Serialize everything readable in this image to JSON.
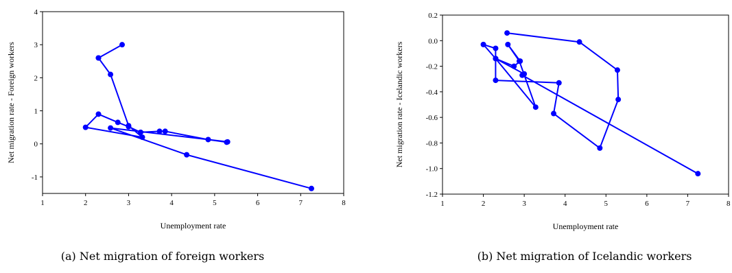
{
  "chart_data": [
    {
      "type": "line",
      "caption": "(a) Net migration of foreign workers",
      "xlabel": "Unemployment rate",
      "ylabel": "Net migration rate - Foreign workers",
      "xlim": [
        1,
        8
      ],
      "ylim": [
        -1.5,
        4
      ],
      "xticks": [
        "1",
        "2",
        "3",
        "4",
        "5",
        "6",
        "7",
        "8"
      ],
      "yticks": [
        "-1",
        "0",
        "1",
        "2",
        "3",
        "4"
      ],
      "color": "#0000ff",
      "series": [
        {
          "x": [
            2.3,
            2.85,
            2.3,
            2.58,
            3.0,
            3.32,
            2.0,
            2.3,
            2.75,
            3.0,
            3.28,
            3.72,
            3.85,
            4.85,
            5.28,
            5.3,
            2.58,
            4.35,
            7.25
          ],
          "y": [
            2.6,
            3.0,
            2.6,
            2.1,
            0.55,
            0.2,
            0.5,
            0.9,
            0.65,
            0.52,
            0.35,
            0.38,
            0.38,
            0.13,
            0.05,
            0.06,
            0.48,
            -0.33,
            -1.35
          ]
        }
      ]
    },
    {
      "type": "line",
      "caption": "(b) Net migration of Icelandic workers",
      "xlabel": "Unemployment rate",
      "ylabel": "Net migration rate - Icelandic workers",
      "xlim": [
        1,
        8
      ],
      "ylim": [
        -1.2,
        0.2
      ],
      "xticks": [
        "1",
        "2",
        "3",
        "4",
        "5",
        "6",
        "7",
        "8"
      ],
      "yticks": [
        "-1.2",
        "-1.0",
        "-0.8",
        "-0.6",
        "-0.4",
        "-0.2",
        "0.0",
        "0.2"
      ],
      "color": "#0000ff",
      "series": [
        {
          "x": [
            2.58,
            4.35,
            5.28,
            5.3,
            4.85,
            3.72,
            3.85,
            2.3,
            2.3,
            2.0,
            2.3,
            2.75,
            2.9,
            2.6,
            2.88,
            3.28,
            2.3,
            3.0,
            2.95,
            7.25
          ],
          "y": [
            0.06,
            -0.01,
            -0.23,
            -0.46,
            -0.84,
            -0.57,
            -0.33,
            -0.31,
            -0.06,
            -0.03,
            -0.14,
            -0.2,
            -0.16,
            -0.03,
            -0.16,
            -0.52,
            -0.14,
            -0.26,
            -0.27,
            -1.04
          ]
        }
      ]
    }
  ]
}
